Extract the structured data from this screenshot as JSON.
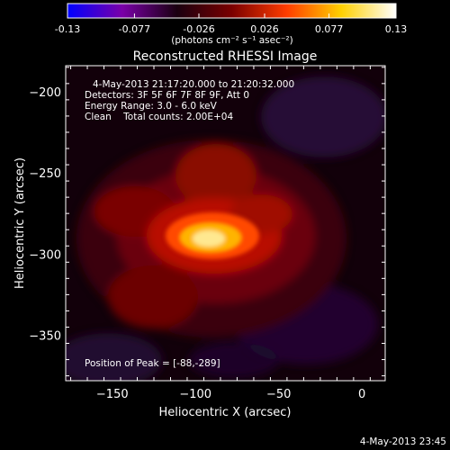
{
  "colorbar": {
    "ticks": [
      "-0.13",
      "-0.077",
      "-0.026",
      "0.026",
      "0.077",
      "0.13"
    ],
    "tick_values": [
      -0.13,
      -0.077,
      -0.026,
      0.026,
      0.077,
      0.13
    ],
    "unit_label": "(photons cm⁻² s⁻¹ asec⁻²)",
    "colormap": [
      "#0000ff",
      "#7a00a8",
      "#1a0010",
      "#7a0000",
      "#ff3c00",
      "#ffd000",
      "#ffffff"
    ]
  },
  "chart_data": {
    "type": "heatmap",
    "title": "Reconstructed RHESSI Image",
    "xlabel": "Heliocentric X (arcsec)",
    "ylabel": "Heliocentric Y (arcsec)",
    "xlim": [
      -178,
      14
    ],
    "ylim": [
      -378,
      -184
    ],
    "x_ticks": [
      -150,
      -100,
      -50,
      0
    ],
    "x_tick_labels": [
      "−150",
      "−100",
      "−50",
      "0"
    ],
    "y_ticks": [
      -200,
      -250,
      -300,
      -350
    ],
    "y_tick_labels": [
      "−200",
      "−250",
      "−300",
      "−350"
    ],
    "peak_position": [
      -88,
      -289
    ],
    "value_range": [
      -0.13,
      0.13
    ],
    "annotations": [
      "4-May-2013 21:17:20.000 to 21:20:32.000",
      "Detectors: 3F 5F 6F 7F 8F 9F, Att 0",
      "Energy Range: 3.0 - 6.0 keV",
      "Clean    Total counts: 2.00E+04",
      "Position of Peak = [-88,-289]"
    ]
  },
  "footer": {
    "timestamp": "4-May-2013 23:45"
  }
}
